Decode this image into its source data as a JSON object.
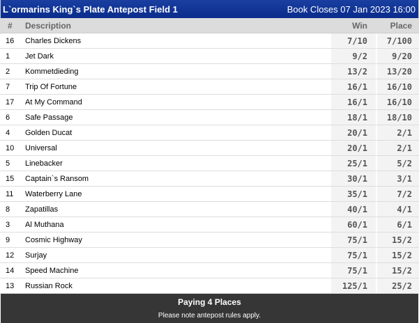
{
  "header": {
    "title": "L`ormarins King`s Plate Antepost Field 1",
    "book_closes": "Book Closes 07 Jan 2023 16:00"
  },
  "columns": {
    "num": "#",
    "description": "Description",
    "win": "Win",
    "place": "Place"
  },
  "rows": [
    {
      "num": "16",
      "name": "Charles Dickens",
      "win": "7/10",
      "place": "7/100"
    },
    {
      "num": "1",
      "name": "Jet Dark",
      "win": "9/2",
      "place": "9/20"
    },
    {
      "num": "2",
      "name": "Kommetdieding",
      "win": "13/2",
      "place": "13/20"
    },
    {
      "num": "7",
      "name": "Trip Of Fortune",
      "win": "16/1",
      "place": "16/10"
    },
    {
      "num": "17",
      "name": "At My Command",
      "win": "16/1",
      "place": "16/10"
    },
    {
      "num": "6",
      "name": "Safe Passage",
      "win": "18/1",
      "place": "18/10"
    },
    {
      "num": "4",
      "name": "Golden Ducat",
      "win": "20/1",
      "place": "2/1"
    },
    {
      "num": "10",
      "name": "Universal",
      "win": "20/1",
      "place": "2/1"
    },
    {
      "num": "5",
      "name": "Linebacker",
      "win": "25/1",
      "place": "5/2"
    },
    {
      "num": "15",
      "name": "Captain`s Ransom",
      "win": "30/1",
      "place": "3/1"
    },
    {
      "num": "11",
      "name": "Waterberry Lane",
      "win": "35/1",
      "place": "7/2"
    },
    {
      "num": "8",
      "name": "Zapatillas",
      "win": "40/1",
      "place": "4/1"
    },
    {
      "num": "3",
      "name": "Al Muthana",
      "win": "60/1",
      "place": "6/1"
    },
    {
      "num": "9",
      "name": "Cosmic Highway",
      "win": "75/1",
      "place": "15/2"
    },
    {
      "num": "12",
      "name": "Surjay",
      "win": "75/1",
      "place": "15/2"
    },
    {
      "num": "14",
      "name": "Speed Machine",
      "win": "75/1",
      "place": "15/2"
    },
    {
      "num": "13",
      "name": "Russian Rock",
      "win": "125/1",
      "place": "25/2"
    }
  ],
  "footer": {
    "places": "Paying 4 Places",
    "note": "Please note antepost rules apply."
  }
}
